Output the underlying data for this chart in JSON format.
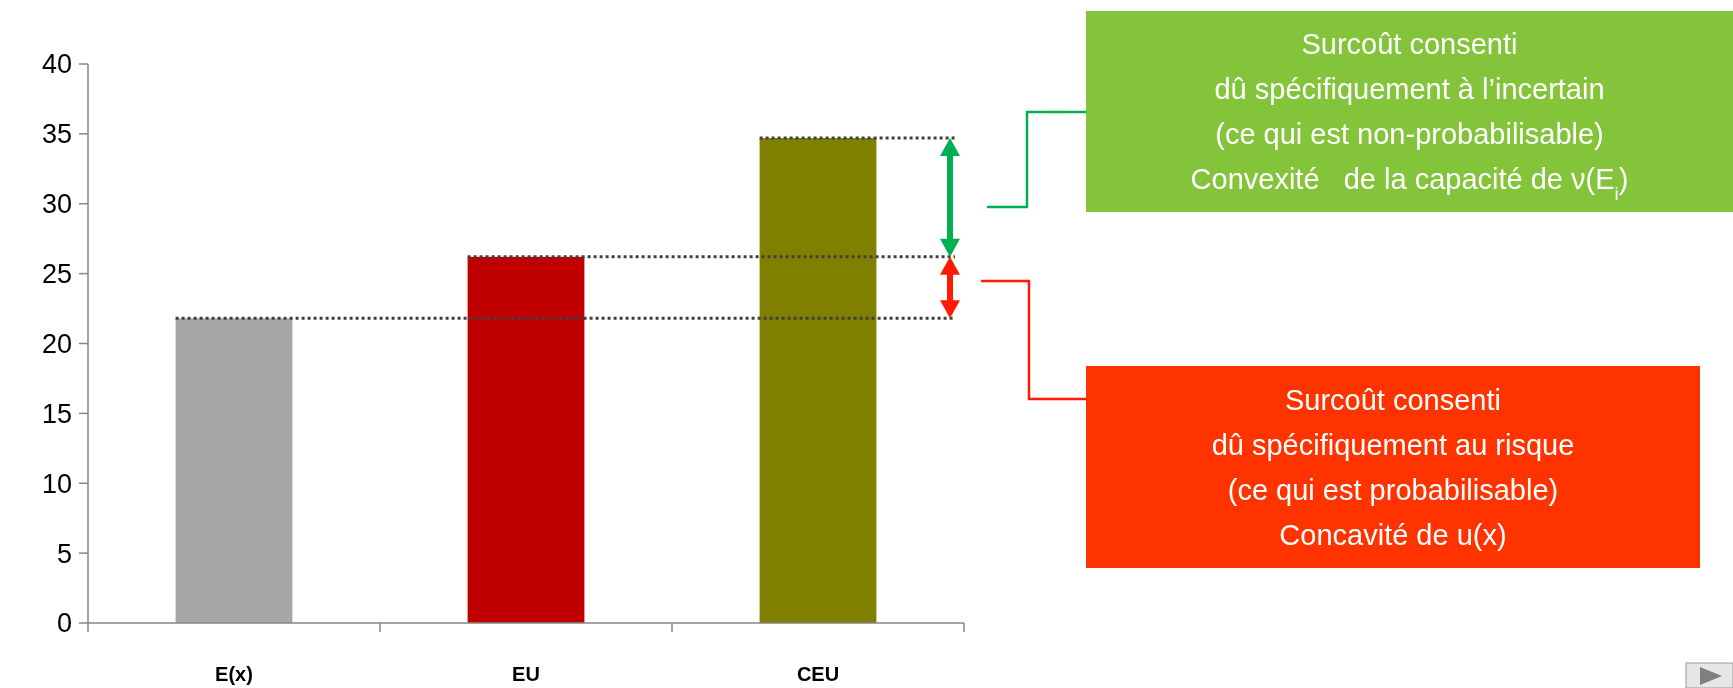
{
  "chart_data": {
    "type": "bar",
    "categories": [
      "E(x)",
      "EU",
      "CEU"
    ],
    "values": [
      21.8,
      26.2,
      34.7
    ],
    "colors": [
      "#a6a6a6",
      "#c00000",
      "#808000"
    ],
    "ylim": [
      0,
      40
    ],
    "yticks": [
      0,
      5,
      10,
      15,
      20,
      25,
      30,
      35,
      40
    ],
    "grid": false,
    "ref_lines": [
      {
        "axis": "y",
        "value": 21.8,
        "color": "#404040",
        "line_style": "dotted"
      },
      {
        "axis": "y",
        "value": 26.2,
        "color": "#404040",
        "line_style": "dotted"
      },
      {
        "axis": "y",
        "value": 34.7,
        "color": "#404040",
        "line_style": "dotted"
      }
    ],
    "annotations": [
      "Surcoût consenti\ndû spécifiquement à l’incertain\n(ce qui est non-probabilisable)\nConvexité   de la capacité de ν(E$_{i}$)",
      "Surcoût consenti\ndû spécifiquement au risque\n(ce qui est probabilisable)\nConcavité de u(x)"
    ]
  }
}
